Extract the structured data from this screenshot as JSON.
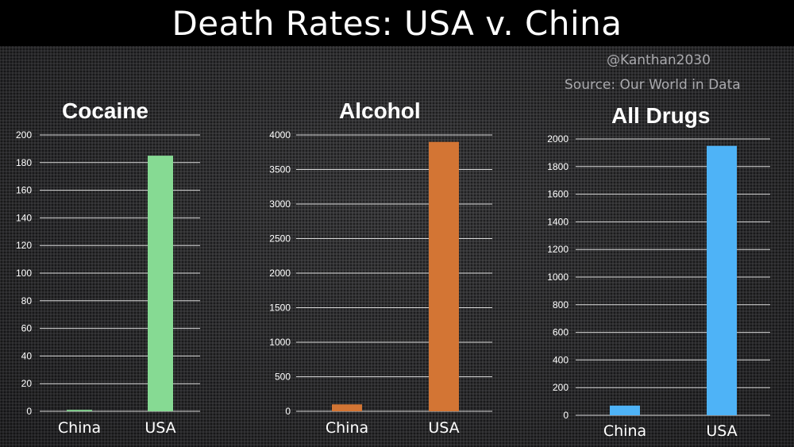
{
  "header": {
    "title": "Death Rates: USA v. China",
    "credit": "@Kanthan2030",
    "source": "Source: Our World in Data"
  },
  "colors": {
    "cocaine": "#86da93",
    "alcohol": "#d37534",
    "all_drugs": "#4eb3f7",
    "grid": "#d8d8d8",
    "text": "#ffffff"
  },
  "chart_data": [
    {
      "type": "bar",
      "title": "Cocaine",
      "categories": [
        "China",
        "USA"
      ],
      "values": [
        1,
        185
      ],
      "ylim": [
        0,
        200
      ],
      "yticks": [
        0,
        20,
        40,
        60,
        80,
        100,
        120,
        140,
        160,
        180,
        200
      ],
      "xlabel": "",
      "ylabel": "",
      "color": "#86da93",
      "grid": true
    },
    {
      "type": "bar",
      "title": "Alcohol",
      "categories": [
        "China",
        "USA"
      ],
      "values": [
        100,
        3900
      ],
      "ylim": [
        0,
        4000
      ],
      "yticks": [
        0,
        500,
        1000,
        1500,
        2000,
        2500,
        3000,
        3500,
        4000
      ],
      "xlabel": "",
      "ylabel": "",
      "color": "#d37534",
      "grid": true
    },
    {
      "type": "bar",
      "title": "All Drugs",
      "categories": [
        "China",
        "USA"
      ],
      "values": [
        70,
        1950
      ],
      "ylim": [
        0,
        2000
      ],
      "yticks": [
        0,
        200,
        400,
        600,
        800,
        1000,
        1200,
        1400,
        1600,
        1800,
        2000
      ],
      "xlabel": "",
      "ylabel": "",
      "color": "#4eb3f7",
      "grid": true
    }
  ]
}
